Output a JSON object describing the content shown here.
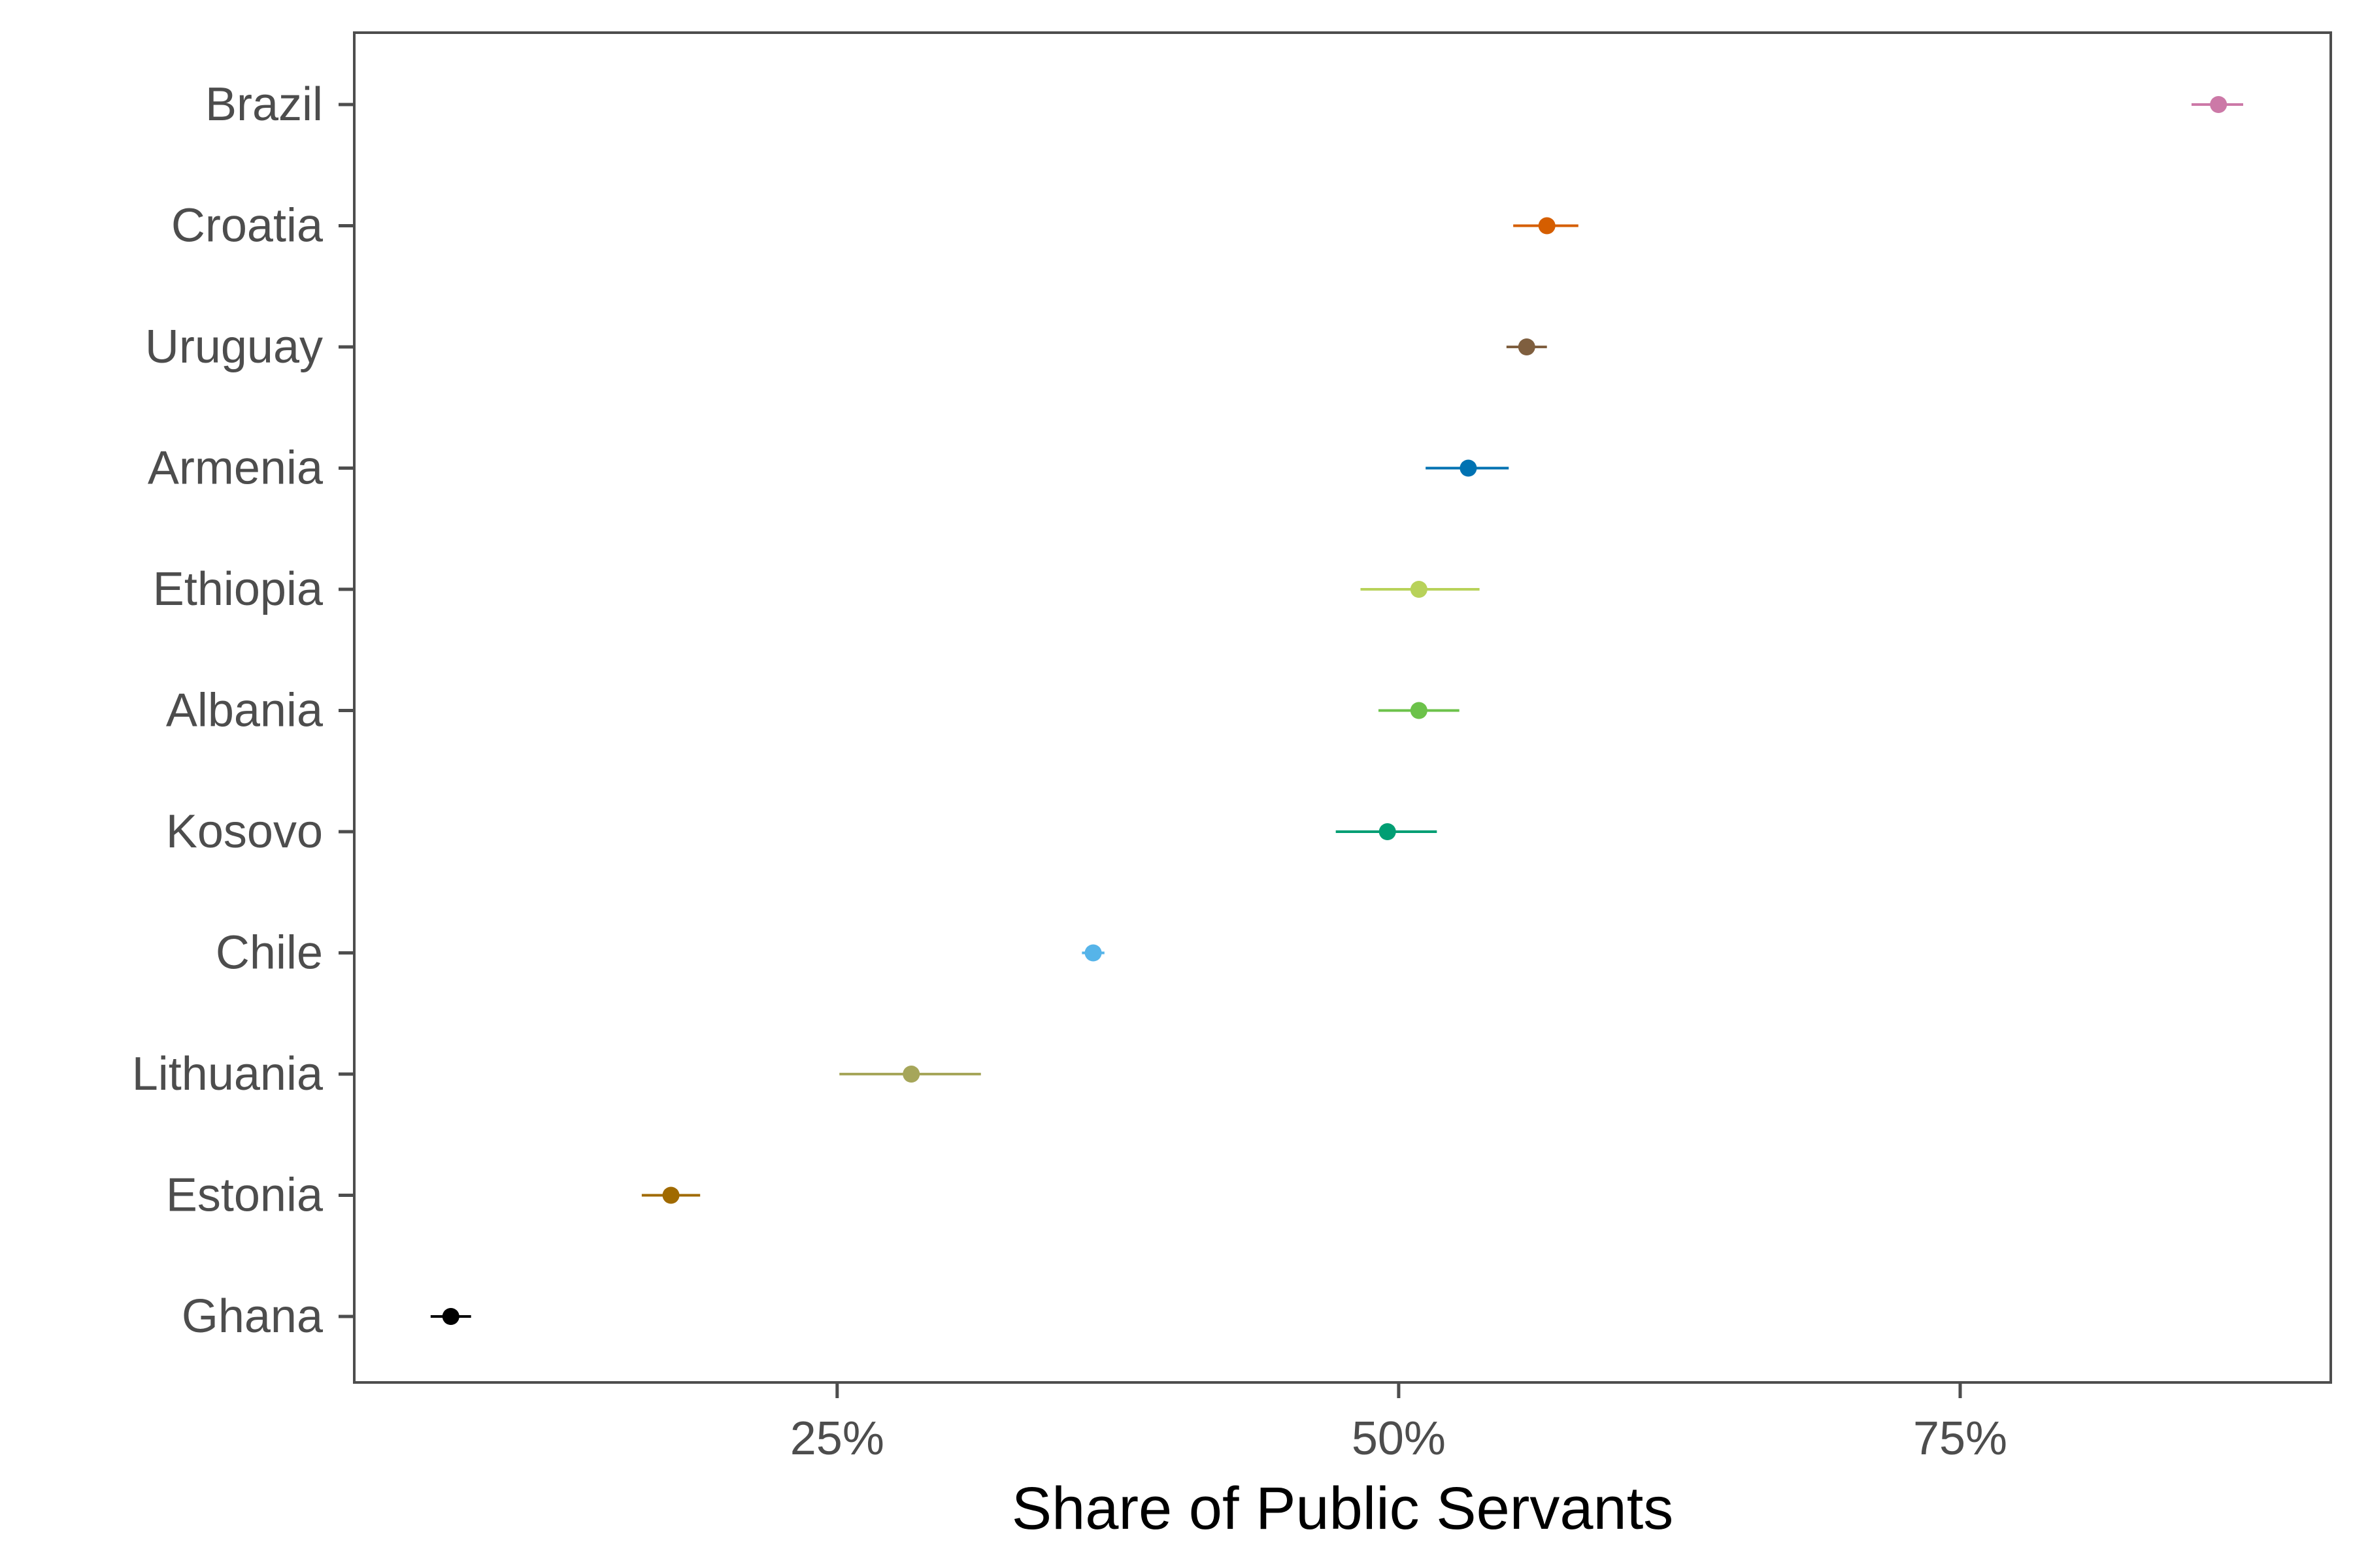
{
  "chart_data": {
    "type": "scatter",
    "subtype": "dot-with-error-bars",
    "xlabel": "Share of Public Servants",
    "ylabel": "",
    "xlim": [
      3.5,
      91.5
    ],
    "x_ticks": [
      {
        "value": 25,
        "label": "25%"
      },
      {
        "value": 50,
        "label": "50%"
      },
      {
        "value": 75,
        "label": "75%"
      }
    ],
    "grid": false,
    "legend": "none",
    "points": [
      {
        "country": "Brazil",
        "value": 86.5,
        "lower": 85.3,
        "upper": 87.6,
        "color": "#CC79A7"
      },
      {
        "country": "Croatia",
        "value": 56.6,
        "lower": 55.1,
        "upper": 58.0,
        "color": "#D55E00"
      },
      {
        "country": "Uruguay",
        "value": 55.7,
        "lower": 54.8,
        "upper": 56.6,
        "color": "#7F5F3F"
      },
      {
        "country": "Armenia",
        "value": 53.1,
        "lower": 51.2,
        "upper": 54.9,
        "color": "#0072B2"
      },
      {
        "country": "Ethiopia",
        "value": 50.9,
        "lower": 48.3,
        "upper": 53.6,
        "color": "#B8D25A"
      },
      {
        "country": "Albania",
        "value": 50.9,
        "lower": 49.1,
        "upper": 52.7,
        "color": "#6CC24A"
      },
      {
        "country": "Kosovo",
        "value": 49.5,
        "lower": 47.2,
        "upper": 51.7,
        "color": "#009E73"
      },
      {
        "country": "Chile",
        "value": 36.4,
        "lower": 35.9,
        "upper": 36.9,
        "color": "#56B4E9"
      },
      {
        "country": "Lithuania",
        "value": 28.3,
        "lower": 25.1,
        "upper": 31.4,
        "color": "#A6A65A"
      },
      {
        "country": "Estonia",
        "value": 17.6,
        "lower": 16.3,
        "upper": 18.9,
        "color": "#A06A00"
      },
      {
        "country": "Ghana",
        "value": 7.8,
        "lower": 6.9,
        "upper": 8.7,
        "color": "#000000"
      }
    ]
  }
}
